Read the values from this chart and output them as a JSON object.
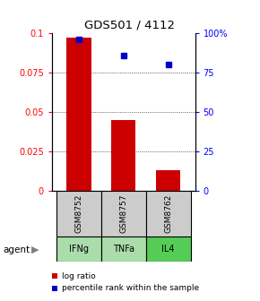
{
  "title": "GDS501 / 4112",
  "categories": [
    "GSM8752",
    "GSM8757",
    "GSM8762"
  ],
  "agents": [
    "IFNg",
    "TNFa",
    "IL4"
  ],
  "log_ratios": [
    0.097,
    0.045,
    0.013
  ],
  "percentile_ranks": [
    96,
    86,
    80
  ],
  "bar_color": "#cc0000",
  "point_color": "#0000cc",
  "left_ylim": [
    0,
    0.1
  ],
  "right_ylim": [
    0,
    100
  ],
  "left_yticks": [
    0,
    0.025,
    0.05,
    0.075,
    0.1
  ],
  "left_yticklabels": [
    "0",
    "0.025",
    "0.05",
    "0.075",
    "0.1"
  ],
  "right_yticks": [
    0,
    25,
    50,
    75,
    100
  ],
  "right_yticklabels": [
    "0",
    "25",
    "50",
    "75",
    "100%"
  ],
  "grid_values": [
    0.025,
    0.05,
    0.075
  ],
  "sample_bg_color": "#cccccc",
  "agent_bg_colors": [
    "#aaddaa",
    "#aaddaa",
    "#55cc55"
  ],
  "legend_log_label": "log ratio",
  "legend_pct_label": "percentile rank within the sample",
  "agent_label": "agent"
}
